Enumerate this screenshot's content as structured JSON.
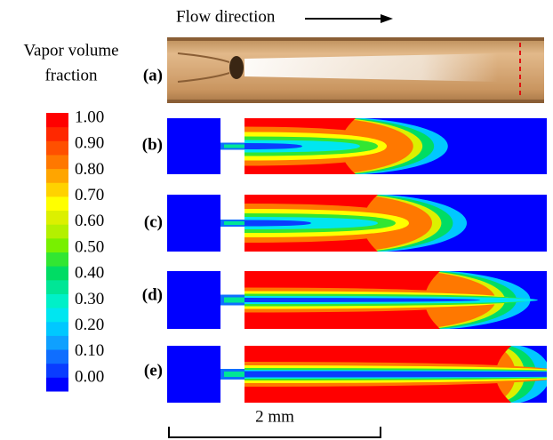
{
  "header": {
    "flow_label": "Flow direction"
  },
  "colorbar": {
    "title": [
      "Vapor volume",
      "fraction"
    ],
    "lim": [
      0,
      1
    ],
    "ticks": [
      {
        "value": 1,
        "label": "1.00"
      },
      {
        "value": 0.9,
        "label": "0.90"
      },
      {
        "value": 0.8,
        "label": "0.80"
      },
      {
        "value": 0.7,
        "label": "0.70"
      },
      {
        "value": 0.6,
        "label": "0.60"
      },
      {
        "value": 0.5,
        "label": "0.50"
      },
      {
        "value": 0.4,
        "label": "0.40"
      },
      {
        "value": 0.3,
        "label": "0.30"
      },
      {
        "value": 0.2,
        "label": "0.20"
      },
      {
        "value": 0.1,
        "label": "0.10"
      },
      {
        "value": 0,
        "label": "0.00"
      }
    ],
    "colors": [
      "#0000ff",
      "#0a3cff",
      "#0f6eff",
      "#0fa0ff",
      "#00c8ff",
      "#00e6f0",
      "#00f0c8",
      "#00e696",
      "#00dc64",
      "#32e632",
      "#78f000",
      "#b4f000",
      "#dcf000",
      "#ffff00",
      "#ffd200",
      "#ffa500",
      "#ff7800",
      "#ff5000",
      "#ff2800",
      "#ff0000"
    ]
  },
  "panels": [
    {
      "label": "(a)"
    },
    {
      "label": "(b)"
    },
    {
      "label": "(c)"
    },
    {
      "label": "(d)"
    },
    {
      "label": "(e)"
    }
  ],
  "scale_bar": {
    "label": "2 mm"
  }
}
